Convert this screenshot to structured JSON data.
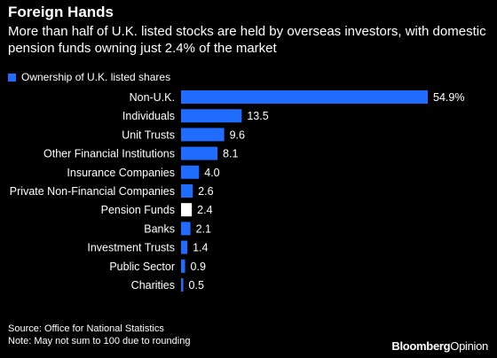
{
  "header": {
    "title": "Foreign Hands",
    "subtitle": "More than half of U.K. listed stocks are held by overseas investors, with domestic pension funds owning just 2.4% of the market"
  },
  "footer": {
    "source": "Source: Office for National Statistics",
    "note": "Note: May not sum to 100 due to rounding"
  },
  "brand": {
    "part1": "Bloomberg",
    "part2": "Opinion"
  },
  "chart_data": {
    "type": "bar",
    "orientation": "horizontal",
    "legend": {
      "label": "Ownership of U.K. listed shares",
      "color": "#1f6cff"
    },
    "categories": [
      "Non-U.K.",
      "Individuals",
      "Unit Trusts",
      "Other Financial Institutions",
      "Insurance Companies",
      "Private Non-Financial Companies",
      "Pension Funds",
      "Banks",
      "Investment Trusts",
      "Public Sector",
      "Charities"
    ],
    "values": [
      54.9,
      13.5,
      9.6,
      8.1,
      4.0,
      2.6,
      2.4,
      2.1,
      1.4,
      0.9,
      0.5
    ],
    "value_labels": [
      "54.9%",
      "13.5",
      "9.6",
      "8.1",
      "4.0",
      "2.6",
      "2.4",
      "2.1",
      "1.4",
      "0.9",
      "0.5"
    ],
    "highlight_category": "Pension Funds",
    "colors": {
      "bar": "#1f6cff",
      "highlight": "#ffffff"
    },
    "xlim": [
      0,
      54.9
    ],
    "grid": false
  }
}
